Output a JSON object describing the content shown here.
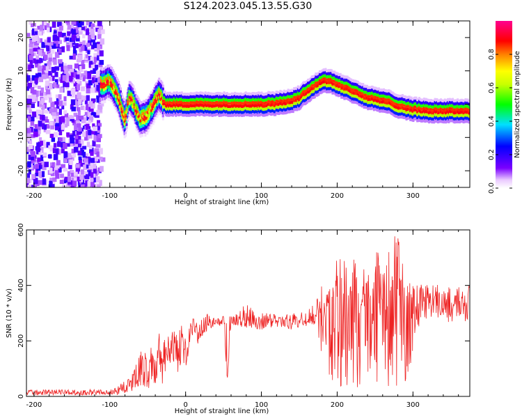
{
  "page": {
    "title": "S124.2023.045.13.55.G30"
  },
  "chart_data": [
    {
      "type": "heatmap",
      "title": "S124.2023.045.13.55.G30",
      "xlabel": "Height of straight line (km)",
      "ylabel": "Frequency (Hz)",
      "xlim": [
        -210,
        375
      ],
      "ylim": [
        -25,
        25
      ],
      "xticks": [
        -200,
        -100,
        0,
        100,
        200,
        300
      ],
      "yticks": [
        -20,
        -10,
        0,
        10,
        20
      ],
      "colorbar": {
        "label": "Normalized spectral amplitude",
        "range": [
          0,
          1
        ],
        "ticks": [
          "0.0",
          "0.2",
          "0.4",
          "0.6",
          "0.8"
        ],
        "colormap": "rainbow (white-violet-blue-cyan-green-yellow-red-magenta)"
      },
      "ridge": {
        "x": [
          -110,
          -100,
          -95,
          -90,
          -85,
          -80,
          -75,
          -70,
          -65,
          -60,
          -55,
          -50,
          -45,
          -40,
          -35,
          -30,
          -25,
          -20,
          -10,
          0,
          20,
          40,
          60,
          80,
          100,
          120,
          140,
          150,
          160,
          170,
          180,
          190,
          200,
          210,
          220,
          230,
          240,
          250,
          260,
          270,
          280,
          290,
          300,
          320,
          340,
          360,
          375
        ],
        "y": [
          6,
          7,
          5,
          3,
          -1,
          -5,
          2,
          1,
          -2,
          -4,
          -4,
          -3,
          -1,
          1,
          3,
          1,
          0,
          0,
          0,
          0,
          0,
          0,
          0,
          0,
          0,
          0.3,
          1,
          2,
          4,
          5.5,
          7,
          7,
          6,
          5,
          4,
          3,
          2,
          1.5,
          1,
          0.5,
          -0.5,
          -1,
          -1.5,
          -2,
          -2,
          -2,
          -2
        ]
      }
    },
    {
      "type": "line",
      "xlabel": "Height of straight line (km)",
      "ylabel": "SNR (10 * v/v)",
      "xlim": [
        -210,
        375
      ],
      "ylim": [
        0,
        600
      ],
      "xticks": [
        -200,
        -100,
        0,
        100,
        200,
        300
      ],
      "yticks": [
        0,
        200,
        400,
        600
      ],
      "color": "#ee2222",
      "series": [
        {
          "x": [
            -210,
            -180,
            -150,
            -120,
            -100,
            -90,
            -80,
            -70,
            -60,
            -55,
            -50,
            -45,
            -40,
            -35,
            -30,
            -25,
            -20,
            -15,
            -10,
            -5,
            0,
            5,
            10,
            15,
            20,
            25,
            30,
            40,
            50,
            55,
            60,
            70,
            80,
            90,
            100,
            110,
            120,
            130,
            140,
            150,
            160,
            170,
            180,
            185,
            190,
            200,
            210,
            220,
            230,
            240,
            250,
            260,
            270,
            280,
            290,
            300,
            310,
            320,
            330,
            340,
            350,
            360,
            370,
            375
          ],
          "y": [
            15,
            15,
            15,
            15,
            15,
            20,
            30,
            50,
            80,
            150,
            60,
            150,
            90,
            190,
            100,
            150,
            170,
            170,
            120,
            230,
            150,
            220,
            280,
            230,
            240,
            250,
            260,
            270,
            270,
            60,
            270,
            275,
            275,
            270,
            270,
            275,
            270,
            270,
            260,
            270,
            270,
            280,
            330,
            280,
            330,
            360,
            200,
            340,
            180,
            380,
            250,
            430,
            160,
            480,
            220,
            380,
            330,
            360,
            330,
            350,
            310,
            350,
            320,
            380
          ],
          "envelope_low": [
            5,
            5,
            5,
            5,
            5,
            5,
            10,
            20,
            40,
            30,
            20,
            40,
            40,
            80,
            40,
            80,
            110,
            120,
            60,
            150,
            90,
            150,
            220,
            180,
            200,
            220,
            240,
            255,
            250,
            60,
            250,
            250,
            240,
            245,
            240,
            250,
            245,
            250,
            240,
            250,
            250,
            250,
            150,
            120,
            60,
            40,
            20,
            10,
            10,
            20,
            20,
            40,
            10,
            30,
            50,
            150,
            250,
            290,
            280,
            280,
            260,
            280,
            270,
            270
          ],
          "envelope_high": [
            25,
            25,
            25,
            25,
            25,
            35,
            60,
            90,
            160,
            170,
            140,
            180,
            160,
            230,
            190,
            220,
            250,
            240,
            220,
            280,
            230,
            280,
            300,
            270,
            285,
            290,
            300,
            290,
            290,
            280,
            295,
            300,
            340,
            310,
            300,
            300,
            300,
            300,
            300,
            300,
            310,
            340,
            400,
            380,
            470,
            500,
            490,
            510,
            500,
            430,
            540,
            500,
            560,
            600,
            460,
            400,
            420,
            400,
            410,
            390,
            400,
            410,
            400,
            400
          ]
        }
      ]
    }
  ]
}
